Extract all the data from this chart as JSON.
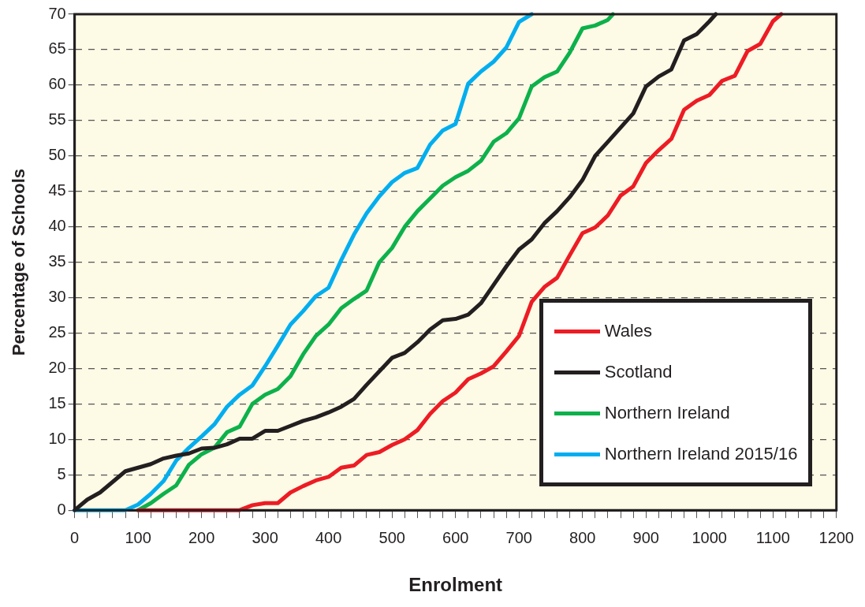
{
  "chart_data": {
    "type": "line",
    "xlabel": "Enrolment",
    "ylabel": "Percentage of Schools",
    "xlim": [
      0,
      1200
    ],
    "ylim": [
      0,
      70
    ],
    "xticks": [
      0,
      {
        "value": 20,
        "label": null
      },
      {
        "value": 40,
        "label": null
      },
      {
        "value": 60,
        "label": null
      },
      {
        "value": 80,
        "label": null
      },
      100,
      {
        "value": 120,
        "label": null
      },
      {
        "value": 140,
        "label": null
      },
      {
        "value": 160,
        "label": null
      },
      {
        "value": 180,
        "label": null
      },
      200,
      {
        "value": 220,
        "label": null
      },
      {
        "value": 240,
        "label": null
      },
      {
        "value": 260,
        "label": null
      },
      {
        "value": 280,
        "label": null
      },
      300,
      {
        "value": 320,
        "label": null
      },
      {
        "value": 340,
        "label": null
      },
      {
        "value": 360,
        "label": null
      },
      {
        "value": 380,
        "label": null
      },
      400,
      {
        "value": 420,
        "label": null
      },
      {
        "value": 440,
        "label": null
      },
      {
        "value": 460,
        "label": null
      },
      {
        "value": 480,
        "label": null
      },
      500,
      {
        "value": 520,
        "label": null
      },
      {
        "value": 540,
        "label": null
      },
      {
        "value": 560,
        "label": null
      },
      {
        "value": 580,
        "label": null
      },
      600,
      {
        "value": 620,
        "label": null
      },
      {
        "value": 640,
        "label": null
      },
      {
        "value": 660,
        "label": null
      },
      {
        "value": 680,
        "label": null
      },
      700,
      {
        "value": 720,
        "label": null
      },
      {
        "value": 740,
        "label": null
      },
      {
        "value": 760,
        "label": null
      },
      {
        "value": 780,
        "label": null
      },
      800,
      {
        "value": 820,
        "label": null
      },
      {
        "value": 840,
        "label": null
      },
      {
        "value": 860,
        "label": null
      },
      {
        "value": 880,
        "label": null
      },
      900,
      {
        "value": 920,
        "label": null
      },
      {
        "value": 940,
        "label": null
      },
      {
        "value": 960,
        "label": null
      },
      {
        "value": 980,
        "label": null
      },
      1000,
      {
        "value": 1020,
        "label": null
      },
      {
        "value": 1040,
        "label": null
      },
      {
        "value": 1060,
        "label": null
      },
      {
        "value": 1080,
        "label": null
      },
      1100,
      {
        "value": 1120,
        "label": null
      },
      {
        "value": 1140,
        "label": null
      },
      {
        "value": 1160,
        "label": null
      },
      {
        "value": 1180,
        "label": null
      },
      1200
    ],
    "yticks": [
      0,
      5,
      10,
      15,
      20,
      25,
      30,
      35,
      40,
      45,
      50,
      55,
      60,
      65,
      70
    ],
    "grid": "y",
    "legend": "bottom right",
    "marker": "none",
    "line_style": "solid",
    "series": [
      {
        "name": "Wales",
        "color": "#ed1c24",
        "x": [
          100,
          120,
          140,
          160,
          180,
          200,
          220,
          240,
          260,
          280,
          300,
          320,
          340,
          360,
          380,
          400,
          420,
          440,
          460,
          480,
          500,
          520,
          540,
          560,
          580,
          600,
          620,
          640,
          660,
          680,
          700,
          720,
          740,
          760,
          780,
          800,
          820,
          840,
          860,
          880,
          900,
          920,
          940,
          960,
          980,
          1000,
          1020,
          1040,
          1060,
          1080,
          1100,
          1113
        ],
        "values": [
          0,
          0,
          0,
          0,
          0,
          0,
          0,
          0,
          0,
          0.7,
          1,
          1,
          2.5,
          3.4,
          4.2,
          4.7,
          6,
          6.3,
          7.8,
          8.2,
          9.2,
          10,
          11.3,
          13.6,
          15.4,
          16.6,
          18.5,
          19.3,
          20.3,
          22.4,
          24.6,
          29.4,
          31.5,
          32.8,
          36,
          39.1,
          39.9,
          41.6,
          44.4,
          45.7,
          49,
          50.8,
          52.4,
          56.5,
          57.8,
          58.6,
          60.6,
          61.3,
          64.8,
          65.8,
          69,
          70
        ]
      },
      {
        "name": "Scotland",
        "color": "#231f20",
        "x": [
          0,
          20,
          40,
          60,
          80,
          100,
          120,
          140,
          160,
          180,
          200,
          220,
          240,
          260,
          280,
          300,
          320,
          340,
          360,
          380,
          400,
          420,
          440,
          460,
          480,
          500,
          520,
          540,
          560,
          580,
          600,
          620,
          640,
          660,
          680,
          700,
          720,
          740,
          760,
          780,
          800,
          820,
          840,
          860,
          880,
          900,
          920,
          940,
          960,
          980,
          1000,
          1010
        ],
        "values": [
          0,
          1.5,
          2.5,
          4,
          5.5,
          6,
          6.5,
          7.3,
          7.7,
          8,
          8.7,
          8.8,
          9.3,
          10.1,
          10.1,
          11.2,
          11.2,
          11.9,
          12.6,
          13.1,
          13.8,
          14.6,
          15.7,
          17.7,
          19.6,
          21.5,
          22.2,
          23.7,
          25.5,
          26.8,
          27,
          27.6,
          29.2,
          31.8,
          34.4,
          36.8,
          38.2,
          40.5,
          42.2,
          44.2,
          46.6,
          50,
          52,
          54,
          56,
          59.8,
          61.2,
          62.2,
          66.3,
          67.2,
          69,
          70
        ]
      },
      {
        "name": "Northern Ireland",
        "color": "#0db14b",
        "x": [
          100,
          120,
          140,
          160,
          180,
          200,
          220,
          240,
          260,
          280,
          300,
          320,
          340,
          360,
          380,
          400,
          420,
          440,
          460,
          480,
          500,
          520,
          540,
          560,
          580,
          600,
          620,
          640,
          660,
          680,
          700,
          720,
          740,
          760,
          780,
          800,
          820,
          840,
          848
        ],
        "values": [
          0,
          1,
          2.3,
          3.5,
          6.4,
          7.9,
          8.8,
          11,
          11.8,
          15,
          16.3,
          17.1,
          18.9,
          22,
          24.6,
          26.2,
          28.5,
          29.8,
          31,
          35,
          37,
          40,
          42.2,
          44,
          45.8,
          47,
          47.9,
          49.3,
          52,
          53.2,
          55.3,
          59.8,
          61.1,
          61.9,
          64.6,
          68,
          68.4,
          69.2,
          70
        ]
      },
      {
        "name": "Northern Ireland 2015/16",
        "color": "#00aeef",
        "x": [
          0,
          20,
          40,
          60,
          80,
          100,
          120,
          140,
          160,
          180,
          200,
          220,
          240,
          260,
          280,
          300,
          320,
          340,
          360,
          380,
          400,
          420,
          440,
          460,
          480,
          500,
          520,
          540,
          560,
          580,
          600,
          620,
          640,
          660,
          680,
          700,
          720
        ],
        "values": [
          0,
          0,
          0,
          0,
          0,
          0.8,
          2.3,
          4.1,
          7,
          8.8,
          10.4,
          12.1,
          14.6,
          16.3,
          17.6,
          20.3,
          23.2,
          26.2,
          28.1,
          30.2,
          31.4,
          35.3,
          38.9,
          41.9,
          44.3,
          46.3,
          47.6,
          48.3,
          51.6,
          53.6,
          54.5,
          60.2,
          61.9,
          63.3,
          65.3,
          68.9,
          70
        ]
      }
    ]
  }
}
